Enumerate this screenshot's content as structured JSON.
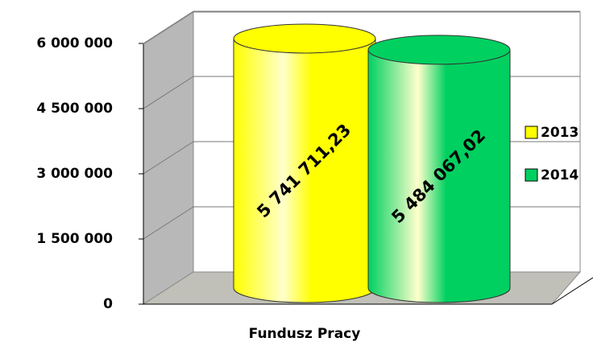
{
  "chart_data": {
    "type": "cylinder",
    "categories": [
      "Fundusz Pracy"
    ],
    "series": [
      {
        "name": "2013",
        "color": "#ffff00",
        "values": [
          5741711.23
        ],
        "value_labels": [
          "5 741 711,23"
        ]
      },
      {
        "name": "2014",
        "color": "#00d060",
        "values": [
          5484067.02
        ],
        "value_labels": [
          "5 484 067,02"
        ]
      }
    ],
    "ylim": [
      0,
      6000000
    ],
    "yticks": [
      0,
      {
        "value": 1500000,
        "label": "1 500 000"
      },
      {
        "value": 3000000,
        "label": "3 000 000"
      },
      {
        "value": 4500000,
        "label": "4 500 000"
      },
      {
        "value": 6000000,
        "label": "6 000 000"
      }
    ],
    "grid": true,
    "legend": "right"
  }
}
